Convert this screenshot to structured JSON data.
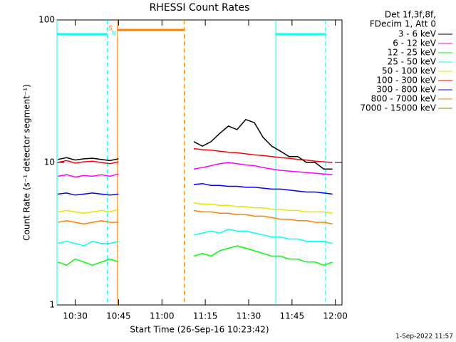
{
  "chart_data": {
    "type": "line",
    "title": "RHESSI Count Rates",
    "y_label": "Count Rate (s⁻¹ detector segment⁻¹)",
    "x_label": "Start Time (26-Sep-16 10:23:42)",
    "legend_header": [
      "Det 1f,3f,8f,",
      "FDecim 1, Att 0"
    ],
    "footer": "1-Sep-2022 11:57",
    "log_y": true,
    "xlim": [
      623.7,
      722.3
    ],
    "xticks": [
      {
        "value": 630,
        "label": "10:30"
      },
      {
        "value": 645,
        "label": "10:45"
      },
      {
        "value": 660,
        "label": "11:00"
      },
      {
        "value": 675,
        "label": "11:15"
      },
      {
        "value": 690,
        "label": "11:30"
      },
      {
        "value": 705,
        "label": "11:45"
      },
      {
        "value": 720,
        "label": "12:00"
      }
    ],
    "ylim": [
      1,
      100
    ],
    "yticks": [
      1,
      10,
      100
    ],
    "x": [
      624,
      627,
      630,
      633,
      636,
      639,
      642,
      645,
      658,
      671,
      674,
      677,
      680,
      683,
      686,
      689,
      692,
      695,
      698,
      701,
      704,
      707,
      710,
      713,
      716,
      719
    ],
    "series": [
      {
        "name": "12 - 25 keV",
        "color": "#00ff00",
        "values": [
          2.0,
          1.9,
          2.1,
          2.0,
          1.9,
          2.0,
          2.1,
          2.0,
          null,
          2.2,
          2.3,
          2.2,
          2.4,
          2.5,
          2.6,
          2.5,
          2.4,
          2.3,
          2.2,
          2.2,
          2.1,
          2.1,
          2.0,
          2.0,
          1.9,
          2.0
        ]
      },
      {
        "name": "25 - 50 keV",
        "color": "#00ffff",
        "values": [
          2.7,
          2.8,
          2.7,
          2.6,
          2.8,
          2.7,
          2.7,
          2.8,
          null,
          3.1,
          3.2,
          3.3,
          3.2,
          3.4,
          3.3,
          3.3,
          3.2,
          3.1,
          3.0,
          3.0,
          2.9,
          2.9,
          2.8,
          2.8,
          2.8,
          2.7
        ]
      },
      {
        "name": "800 - 7000 keV",
        "color": "#ff8000",
        "values": [
          3.8,
          3.9,
          3.8,
          3.7,
          3.8,
          3.9,
          3.8,
          3.8,
          null,
          4.6,
          4.5,
          4.5,
          4.4,
          4.4,
          4.3,
          4.3,
          4.2,
          4.2,
          4.1,
          4.0,
          4.0,
          3.9,
          3.9,
          3.8,
          3.8,
          3.7
        ]
      },
      {
        "name": "50 - 100 keV",
        "color": "#e6e600",
        "values": [
          4.5,
          4.6,
          4.5,
          4.4,
          4.5,
          4.6,
          4.5,
          4.7,
          null,
          5.2,
          5.1,
          5.1,
          5.0,
          5.0,
          4.9,
          4.9,
          4.8,
          4.8,
          4.7,
          4.7,
          4.6,
          4.6,
          4.5,
          4.5,
          4.5,
          4.4
        ]
      },
      {
        "name": "300 - 800 keV",
        "color": "#0000ff",
        "values": [
          6.0,
          6.1,
          5.9,
          6.0,
          6.1,
          6.0,
          5.9,
          6.0,
          null,
          7.0,
          7.1,
          6.9,
          6.9,
          6.8,
          6.8,
          6.7,
          6.7,
          6.6,
          6.5,
          6.5,
          6.4,
          6.3,
          6.2,
          6.2,
          6.1,
          6.0
        ]
      },
      {
        "name": "6 - 12 keV",
        "color": "#ff00ff",
        "values": [
          8.0,
          8.2,
          7.9,
          8.1,
          8.0,
          8.2,
          8.0,
          8.3,
          null,
          9.0,
          9.2,
          9.5,
          9.8,
          10.0,
          9.8,
          9.6,
          9.5,
          9.2,
          9.0,
          8.8,
          8.7,
          8.6,
          8.5,
          8.4,
          8.3,
          8.2
        ]
      },
      {
        "name": "100 - 300 keV",
        "color": "#ff0000",
        "values": [
          10.0,
          10.3,
          9.9,
          10.1,
          10.2,
          10.0,
          9.8,
          10.1,
          null,
          12.5,
          12.3,
          12.2,
          12.0,
          11.8,
          11.7,
          11.5,
          11.3,
          11.2,
          11.0,
          10.8,
          10.7,
          10.5,
          10.4,
          10.2,
          10.1,
          10.0
        ]
      },
      {
        "name": "3 - 6 keV",
        "color": "#000000",
        "values": [
          10.5,
          10.8,
          10.4,
          10.6,
          10.7,
          10.5,
          10.3,
          10.6,
          null,
          14.0,
          13.0,
          14.0,
          16.0,
          18.0,
          17.0,
          20.0,
          19.0,
          15.0,
          13.0,
          12.0,
          11.0,
          11.0,
          10.0,
          10.0,
          9.0,
          9.0
        ]
      },
      {
        "name": "7000 - 15000 keV",
        "color": "#808000",
        "values": [
          null,
          null,
          null,
          null,
          null,
          null,
          null,
          null,
          null,
          null,
          null,
          null,
          null,
          null,
          null,
          null,
          null,
          null,
          null,
          null,
          null,
          null,
          null,
          null,
          null,
          null
        ]
      }
    ],
    "legend_order": [
      7,
      5,
      0,
      1,
      3,
      6,
      4,
      2,
      8
    ],
    "flags": [
      {
        "label": "S",
        "color": "#ff8000",
        "start": 644.6,
        "end": 667.7
      },
      {
        "label": "N",
        "color": "#00ffff",
        "start": 623.7,
        "end": 641.1
      },
      {
        "color": "#00ffff",
        "start": 699.4,
        "end": 716.6
      }
    ]
  }
}
